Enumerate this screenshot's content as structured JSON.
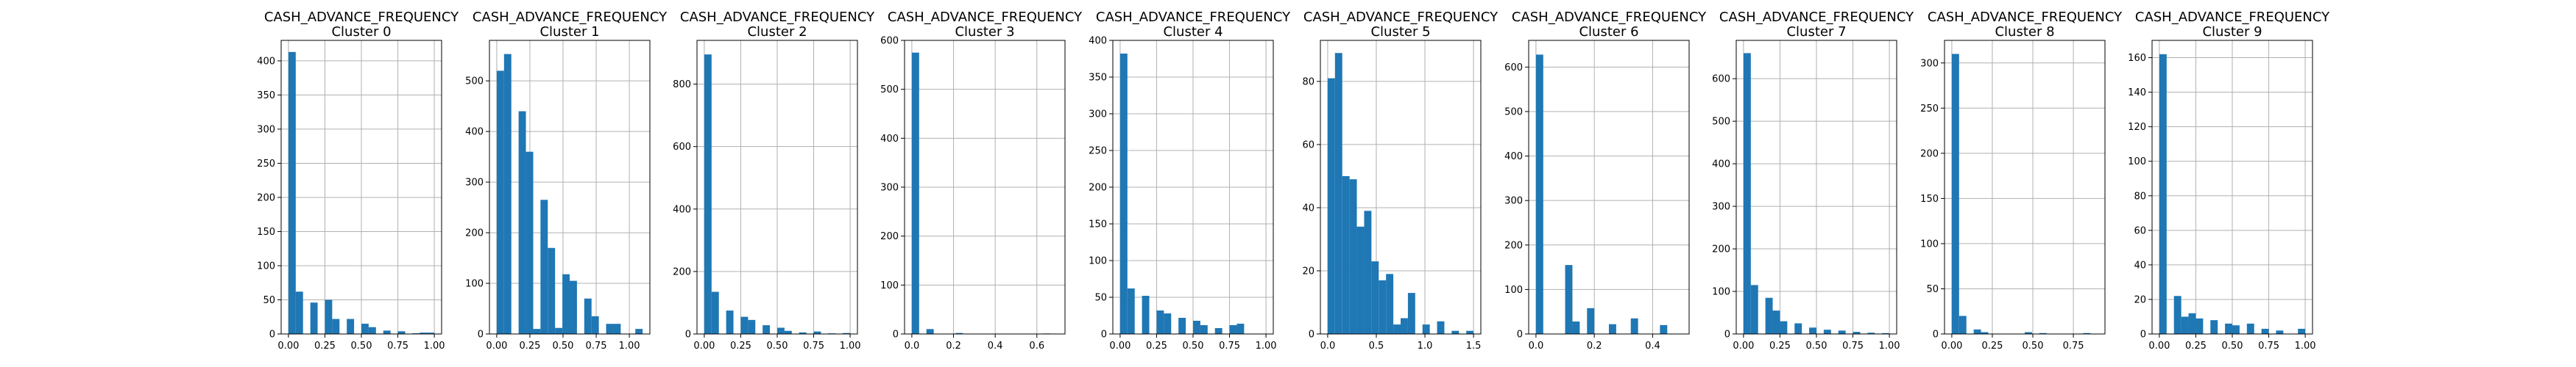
{
  "colors": {
    "bar": "#1f77b4",
    "grid": "#b0b0b0",
    "axis": "#000000"
  },
  "chart_data": [
    {
      "type": "bar",
      "title": "CASH_ADVANCE_FREQUENCY",
      "subtitle": "Cluster 0",
      "grid": true,
      "xlim": [
        -0.05,
        1.05
      ],
      "ylim": [
        0,
        430
      ],
      "xticks": [
        0.0,
        0.25,
        0.5,
        0.75,
        1.0
      ],
      "xtick_labels": [
        "0.00",
        "0.25",
        "0.50",
        "0.75",
        "1.00"
      ],
      "yticks": [
        0,
        50,
        100,
        150,
        200,
        250,
        300,
        350,
        400
      ],
      "ytick_labels": [
        "0",
        "50",
        "100",
        "150",
        "200",
        "250",
        "300",
        "350",
        "400"
      ],
      "bin_start": 0.0,
      "bin_width": 0.05,
      "values": [
        413,
        62,
        0,
        46,
        0,
        50,
        22,
        0,
        22,
        0,
        15,
        10,
        0,
        5,
        0,
        4,
        0,
        1,
        2,
        2
      ]
    },
    {
      "type": "bar",
      "title": "CASH_ADVANCE_FREQUENCY",
      "subtitle": "Cluster 1",
      "grid": true,
      "xlim": [
        -0.055,
        1.155
      ],
      "ylim": [
        0,
        580
      ],
      "xticks": [
        0.0,
        0.25,
        0.5,
        0.75,
        1.0
      ],
      "xtick_labels": [
        "0.00",
        "0.25",
        "0.50",
        "0.75",
        "1.00"
      ],
      "yticks": [
        0,
        100,
        200,
        300,
        400,
        500
      ],
      "ytick_labels": [
        "0",
        "100",
        "200",
        "300",
        "400",
        "500"
      ],
      "bin_start": 0.0,
      "bin_width": 0.055,
      "values": [
        520,
        553,
        0,
        440,
        360,
        10,
        265,
        170,
        12,
        118,
        105,
        0,
        70,
        35,
        0,
        20,
        20,
        0,
        0,
        10
      ]
    },
    {
      "type": "bar",
      "title": "CASH_ADVANCE_FREQUENCY",
      "subtitle": "Cluster 2",
      "grid": true,
      "xlim": [
        -0.05,
        1.05
      ],
      "ylim": [
        0,
        940
      ],
      "xticks": [
        0.0,
        0.25,
        0.5,
        0.75,
        1.0
      ],
      "xtick_labels": [
        "0.00",
        "0.25",
        "0.50",
        "0.75",
        "1.00"
      ],
      "yticks": [
        0,
        200,
        400,
        600,
        800
      ],
      "ytick_labels": [
        "0",
        "200",
        "400",
        "600",
        "800"
      ],
      "bin_start": 0.0,
      "bin_width": 0.05,
      "values": [
        895,
        135,
        0,
        75,
        0,
        55,
        45,
        0,
        28,
        0,
        20,
        10,
        0,
        5,
        0,
        8,
        0,
        2,
        0,
        3
      ]
    },
    {
      "type": "bar",
      "title": "CASH_ADVANCE_FREQUENCY",
      "subtitle": "Cluster 3",
      "grid": true,
      "xlim": [
        -0.035,
        0.735
      ],
      "ylim": [
        0,
        600
      ],
      "xticks": [
        0.0,
        0.2,
        0.4,
        0.6
      ],
      "xtick_labels": [
        "0.0",
        "0.2",
        "0.4",
        "0.6"
      ],
      "yticks": [
        0,
        100,
        200,
        300,
        400,
        500,
        600
      ],
      "ytick_labels": [
        "0",
        "100",
        "200",
        "300",
        "400",
        "500",
        "600"
      ],
      "bin_start": 0.0,
      "bin_width": 0.035,
      "values": [
        575,
        0,
        10,
        0,
        0,
        0,
        2,
        0,
        0,
        0,
        0,
        0,
        0,
        0,
        0,
        0,
        0,
        0,
        1,
        0
      ]
    },
    {
      "type": "bar",
      "title": "CASH_ADVANCE_FREQUENCY",
      "subtitle": "Cluster 4",
      "grid": true,
      "xlim": [
        -0.05,
        1.05
      ],
      "ylim": [
        0,
        400
      ],
      "xticks": [
        0.0,
        0.25,
        0.5,
        0.75,
        1.0
      ],
      "xtick_labels": [
        "0.00",
        "0.25",
        "0.50",
        "0.75",
        "1.00"
      ],
      "yticks": [
        0,
        50,
        100,
        150,
        200,
        250,
        300,
        350,
        400
      ],
      "ytick_labels": [
        "0",
        "50",
        "100",
        "150",
        "200",
        "250",
        "300",
        "350",
        "400"
      ],
      "bin_start": 0.0,
      "bin_width": 0.05,
      "values": [
        382,
        62,
        0,
        52,
        0,
        32,
        28,
        0,
        22,
        0,
        18,
        12,
        0,
        8,
        0,
        12,
        14,
        0,
        0,
        0
      ]
    },
    {
      "type": "bar",
      "title": "CASH_ADVANCE_FREQUENCY",
      "subtitle": "Cluster 5",
      "grid": true,
      "xlim": [
        -0.075,
        1.575
      ],
      "ylim": [
        0,
        93
      ],
      "xticks": [
        0.0,
        0.5,
        1.0,
        1.5
      ],
      "xtick_labels": [
        "0.0",
        "0.5",
        "1.0",
        "1.5"
      ],
      "yticks": [
        0,
        20,
        40,
        60,
        80
      ],
      "ytick_labels": [
        "0",
        "20",
        "40",
        "60",
        "80"
      ],
      "bin_start": 0.0,
      "bin_width": 0.075,
      "values": [
        81,
        89,
        50,
        49,
        34,
        39,
        23,
        17,
        19,
        3,
        5,
        13,
        0,
        3,
        0,
        4,
        0,
        1,
        0,
        1
      ]
    },
    {
      "type": "bar",
      "title": "CASH_ADVANCE_FREQUENCY",
      "subtitle": "Cluster 6",
      "grid": true,
      "xlim": [
        -0.025,
        0.525
      ],
      "ylim": [
        0,
        660
      ],
      "xticks": [
        0.0,
        0.2,
        0.4
      ],
      "xtick_labels": [
        "0.0",
        "0.2",
        "0.4"
      ],
      "yticks": [
        0,
        100,
        200,
        300,
        400,
        500,
        600
      ],
      "ytick_labels": [
        "0",
        "100",
        "200",
        "300",
        "400",
        "500",
        "600"
      ],
      "bin_start": 0.0,
      "bin_width": 0.025,
      "values": [
        628,
        0,
        0,
        0,
        155,
        28,
        0,
        58,
        0,
        0,
        22,
        0,
        0,
        35,
        0,
        0,
        0,
        20,
        0,
        0
      ]
    },
    {
      "type": "bar",
      "title": "CASH_ADVANCE_FREQUENCY",
      "subtitle": "Cluster 7",
      "grid": true,
      "xlim": [
        -0.05,
        1.05
      ],
      "ylim": [
        0,
        690
      ],
      "xticks": [
        0.0,
        0.25,
        0.5,
        0.75,
        1.0
      ],
      "xtick_labels": [
        "0.00",
        "0.25",
        "0.50",
        "0.75",
        "1.00"
      ],
      "yticks": [
        0,
        100,
        200,
        300,
        400,
        500,
        600
      ],
      "ytick_labels": [
        "0",
        "100",
        "200",
        "300",
        "400",
        "500",
        "600"
      ],
      "bin_start": 0.0,
      "bin_width": 0.05,
      "values": [
        660,
        115,
        0,
        85,
        55,
        30,
        0,
        25,
        0,
        15,
        0,
        10,
        0,
        8,
        0,
        5,
        0,
        3,
        0,
        2
      ]
    },
    {
      "type": "bar",
      "title": "CASH_ADVANCE_FREQUENCY",
      "subtitle": "Cluster 8",
      "grid": true,
      "xlim": [
        -0.045,
        0.945
      ],
      "ylim": [
        0,
        325
      ],
      "xticks": [
        0.0,
        0.25,
        0.5,
        0.75
      ],
      "xtick_labels": [
        "0.00",
        "0.25",
        "0.50",
        "0.75"
      ],
      "yticks": [
        0,
        50,
        100,
        150,
        200,
        250,
        300
      ],
      "ytick_labels": [
        "0",
        "50",
        "100",
        "150",
        "200",
        "250",
        "300"
      ],
      "bin_start": 0.0,
      "bin_width": 0.045,
      "values": [
        310,
        20,
        0,
        5,
        2,
        0,
        0,
        0,
        0,
        0,
        2,
        0,
        1,
        0,
        0,
        0,
        0,
        0,
        1,
        0
      ]
    },
    {
      "type": "bar",
      "title": "CASH_ADVANCE_FREQUENCY",
      "subtitle": "Cluster 9",
      "grid": true,
      "xlim": [
        -0.05,
        1.05
      ],
      "ylim": [
        0,
        170
      ],
      "xticks": [
        0.0,
        0.25,
        0.5,
        0.75,
        1.0
      ],
      "xtick_labels": [
        "0.00",
        "0.25",
        "0.50",
        "0.75",
        "1.00"
      ],
      "yticks": [
        0,
        20,
        40,
        60,
        80,
        100,
        120,
        140,
        160
      ],
      "ytick_labels": [
        "0",
        "20",
        "40",
        "60",
        "80",
        "100",
        "120",
        "140",
        "160"
      ],
      "bin_start": 0.0,
      "bin_width": 0.05,
      "values": [
        162,
        0,
        22,
        10,
        12,
        9,
        0,
        8,
        0,
        6,
        5,
        0,
        6,
        0,
        3,
        0,
        2,
        0,
        0,
        3
      ]
    }
  ]
}
